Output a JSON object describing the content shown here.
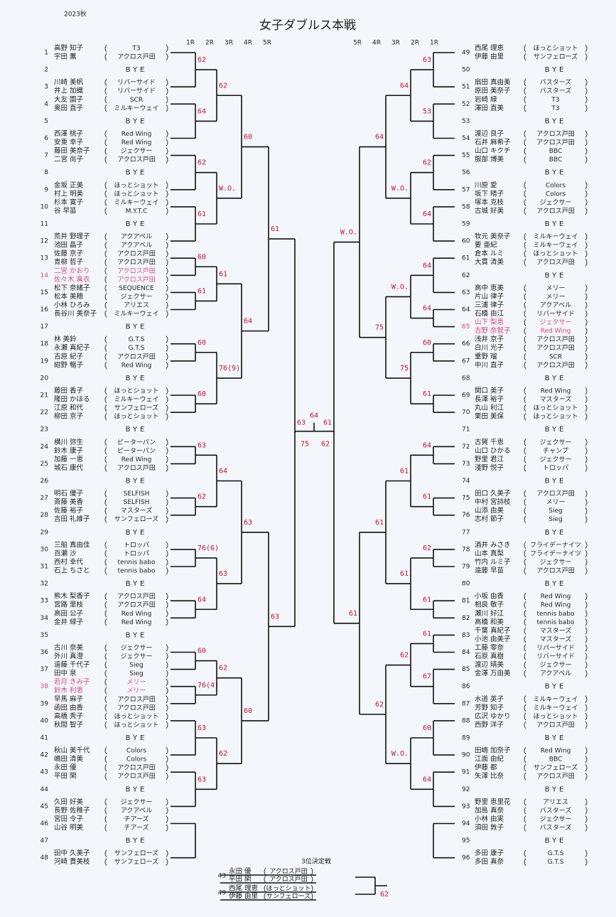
{
  "header": {
    "season": "2023秋",
    "title": "女子ダブルス本戦"
  },
  "rounds_left": [
    "1R",
    "2R",
    "3R",
    "4R",
    "5R"
  ],
  "rounds_right": [
    "5R",
    "4R",
    "3R",
    "2R",
    "1R"
  ],
  "left": {
    "slots": [
      {
        "no": 1,
        "players": [
          {
            "name": "高野 知子",
            "team": "T3"
          },
          {
            "name": "宇田 薫",
            "team": "アクロス戸田"
          }
        ]
      },
      {
        "no": 2,
        "bye": "BYE"
      },
      {
        "no": 3,
        "players": [
          {
            "name": "川崎 美帆",
            "team": "リバーサイド"
          },
          {
            "name": "井上 加織",
            "team": "リバーサイド"
          }
        ]
      },
      {
        "no": 4,
        "players": [
          {
            "name": "大友 園子",
            "team": "SCR"
          },
          {
            "name": "奥田 直子",
            "team": "ミルキーウェイ"
          }
        ]
      },
      {
        "no": 5,
        "bye": "BYE"
      },
      {
        "no": 6,
        "players": [
          {
            "name": "西澤 桃子",
            "team": "Red Wing"
          },
          {
            "name": "安東 幸子",
            "team": "Red Wing"
          }
        ]
      },
      {
        "no": 7,
        "players": [
          {
            "name": "藤田 美奈子",
            "team": "ジェクサー"
          },
          {
            "name": "二宮 尚子",
            "team": "アクロス戸田"
          }
        ]
      },
      {
        "no": 8,
        "bye": "BYE"
      },
      {
        "no": 9,
        "players": [
          {
            "name": "金坂 正美",
            "team": "ほっとショット"
          },
          {
            "name": "村上 明美",
            "team": "ほっとショット"
          }
        ]
      },
      {
        "no": 10,
        "players": [
          {
            "name": "杉本 寛子",
            "team": "ミルキーウェイ"
          },
          {
            "name": "谷 早苗",
            "team": "M.Y.T.C"
          }
        ]
      },
      {
        "no": 11,
        "bye": "BYE"
      },
      {
        "no": 12,
        "players": [
          {
            "name": "荒井 野理子",
            "team": "アクアベル"
          },
          {
            "name": "池田 晶子",
            "team": "アクアベル"
          }
        ]
      },
      {
        "no": 13,
        "players": [
          {
            "name": "佐藤 京子",
            "team": "アクロス戸田"
          },
          {
            "name": "青柳 哲子",
            "team": "アクロス戸田"
          }
        ]
      },
      {
        "no": 14,
        "highlight": true,
        "players": [
          {
            "name": "二宮 かおり",
            "team": "アクロス戸田"
          },
          {
            "name": "佐々木 真衣",
            "team": "アクロス戸田"
          }
        ]
      },
      {
        "no": 15,
        "players": [
          {
            "name": "松下 奈緒子",
            "team": "SEQUENCE"
          },
          {
            "name": "松本 美穂",
            "team": "ジェクサー"
          }
        ]
      },
      {
        "no": 16,
        "players": [
          {
            "name": "小林 ひろみ",
            "team": "アリエス"
          },
          {
            "name": "長谷川 美奈子",
            "team": "ミルキーウェイ"
          }
        ]
      },
      {
        "no": 17,
        "bye": "BYE"
      },
      {
        "no": 18,
        "players": [
          {
            "name": "林 美鈴",
            "team": "G.T.S"
          },
          {
            "name": "永瀬 真紀子",
            "team": "G.T.S"
          }
        ]
      },
      {
        "no": 19,
        "players": [
          {
            "name": "吉原 紀子",
            "team": "アクロス戸田"
          },
          {
            "name": "紺野 暢子",
            "team": "Red Wing"
          }
        ]
      },
      {
        "no": 20,
        "bye": "BYE"
      },
      {
        "no": 21,
        "players": [
          {
            "name": "藤田 香子",
            "team": "ほっとショット"
          },
          {
            "name": "隆田 かほる",
            "team": "ミルキーウェイ"
          }
        ]
      },
      {
        "no": 22,
        "players": [
          {
            "name": "江原 和代",
            "team": "サンフェローズ"
          },
          {
            "name": "柳田 京子",
            "team": "ほっとショット"
          }
        ]
      },
      {
        "no": 23,
        "bye": "BYE"
      },
      {
        "no": 24,
        "players": [
          {
            "name": "横川 弥生",
            "team": "ピーターパン"
          },
          {
            "name": "鈴木 康子",
            "team": "ピーターパン"
          }
        ]
      },
      {
        "no": 25,
        "players": [
          {
            "name": "加藤 一恵",
            "team": "Red Wing"
          },
          {
            "name": "城石 康代",
            "team": "アクロス戸田"
          }
        ]
      },
      {
        "no": 26,
        "bye": "BYE"
      },
      {
        "no": 27,
        "players": [
          {
            "name": "明石 優子",
            "team": "SELFISH"
          },
          {
            "name": "斎藤 美香",
            "team": "SELFISH"
          }
        ]
      },
      {
        "no": 28,
        "players": [
          {
            "name": "佐藤 裕子",
            "team": "マスターズ"
          },
          {
            "name": "吉田 礼維子",
            "team": "サンフェローズ"
          }
        ]
      },
      {
        "no": 29,
        "bye": "BYE"
      },
      {
        "no": 30,
        "players": [
          {
            "name": "三船 真由佳",
            "team": "トロッパ"
          },
          {
            "name": "百瀬 沙",
            "team": "トロッパ"
          }
        ]
      },
      {
        "no": 31,
        "players": [
          {
            "name": "西村 幸代",
            "team": "tennis babo"
          },
          {
            "name": "石上 ちさと",
            "team": "tennis babo"
          }
        ]
      },
      {
        "no": 32,
        "bye": "BYE"
      },
      {
        "no": 33,
        "players": [
          {
            "name": "熊木 梨香子",
            "team": "アクロス戸田"
          },
          {
            "name": "宮路 里枝",
            "team": "アクロス戸田"
          }
        ]
      },
      {
        "no": 34,
        "players": [
          {
            "name": "高田 公子",
            "team": "Red Wing"
          },
          {
            "name": "金井 緑子",
            "team": "Red Wing"
          }
        ]
      },
      {
        "no": 35,
        "bye": "BYE"
      },
      {
        "no": 36,
        "players": [
          {
            "name": "古川 奈美",
            "team": "ジェクサー"
          },
          {
            "name": "外川 真澄",
            "team": "ジェクサー"
          }
        ]
      },
      {
        "no": 37,
        "players": [
          {
            "name": "遠藤 千代子",
            "team": "Sieg"
          },
          {
            "name": "田中 泉",
            "team": "Sieg"
          }
        ]
      },
      {
        "no": 38,
        "highlight": true,
        "players": [
          {
            "name": "若月 きみ子",
            "team": "メリー"
          },
          {
            "name": "鈴木 利恵",
            "team": "メリー"
          }
        ]
      },
      {
        "no": 39,
        "players": [
          {
            "name": "早馬 麻子",
            "team": "アクロス戸田"
          },
          {
            "name": "函田 由香",
            "team": "アクロス戸田"
          }
        ]
      },
      {
        "no": 40,
        "players": [
          {
            "name": "高橋 秀子",
            "team": "ほっとショット"
          },
          {
            "name": "秋間 智子",
            "team": "ほっとショット"
          }
        ]
      },
      {
        "no": 41,
        "bye": "BYE"
      },
      {
        "no": 42,
        "players": [
          {
            "name": "秋山 美千代",
            "team": "Colors"
          },
          {
            "name": "嶋田 清美",
            "team": "Colors"
          }
        ]
      },
      {
        "no": 43,
        "players": [
          {
            "name": "永田 優",
            "team": "アクロス戸田"
          },
          {
            "name": "平田 閑",
            "team": "アクロス戸田"
          }
        ]
      },
      {
        "no": 44,
        "bye": "BYE"
      },
      {
        "no": 45,
        "players": [
          {
            "name": "久田 好美",
            "team": "ジェクサー"
          },
          {
            "name": "長野 佐稚子",
            "team": "アクアベル"
          }
        ]
      },
      {
        "no": 46,
        "players": [
          {
            "name": "宮田 令子",
            "team": "チアーズ"
          },
          {
            "name": "山谷 明美",
            "team": "チアーズ"
          }
        ]
      },
      {
        "no": 47,
        "bye": "BYE"
      },
      {
        "no": 48,
        "players": [
          {
            "name": "田中 久美子",
            "team": "サンフェローズ"
          },
          {
            "name": "河崎 貴美枝",
            "team": "サンフェローズ"
          }
        ]
      }
    ],
    "scores": [
      [
        "62",
        "64",
        "62",
        "61",
        "60",
        "61",
        "60",
        "60",
        "63",
        "62",
        "76(6)",
        "64",
        "60",
        "76(4)",
        "63",
        "63"
      ],
      [
        "62",
        "W.O.",
        "61",
        "76(9)",
        "64",
        "63",
        "62",
        "62"
      ],
      [
        "60",
        "64",
        "63",
        "60"
      ],
      [
        "61",
        "63"
      ],
      [
        "63"
      ]
    ]
  },
  "right": {
    "slots": [
      {
        "no": 49,
        "players": [
          {
            "name": "西尾 理恵",
            "team": "ほっとショット"
          },
          {
            "name": "伊藤 由里",
            "team": "サンフェローズ"
          }
        ]
      },
      {
        "no": 50,
        "bye": "BYE"
      },
      {
        "no": 51,
        "players": [
          {
            "name": "扇田 真由美",
            "team": "バスターズ"
          },
          {
            "name": "原田 美奈子",
            "team": "バスターズ"
          }
        ]
      },
      {
        "no": 52,
        "players": [
          {
            "name": "岩崎 緑",
            "team": "T3"
          },
          {
            "name": "澤田 直美",
            "team": "T3"
          }
        ]
      },
      {
        "no": 53,
        "bye": "BYE"
      },
      {
        "no": 54,
        "players": [
          {
            "name": "渡辺 良子",
            "team": "アクロス戸田"
          },
          {
            "name": "石井 麻希子",
            "team": "アクロス戸田"
          }
        ]
      },
      {
        "no": 55,
        "players": [
          {
            "name": "山口 キクチ",
            "team": "BBC"
          },
          {
            "name": "服部 博美",
            "team": "BBC"
          }
        ]
      },
      {
        "no": 56,
        "bye": "BYE"
      },
      {
        "no": 57,
        "players": [
          {
            "name": "川原 愛",
            "team": "Colors"
          },
          {
            "name": "坂下 晴子",
            "team": "Colors"
          }
        ]
      },
      {
        "no": 58,
        "players": [
          {
            "name": "塚本 克枝",
            "team": "ジェクサー"
          },
          {
            "name": "古城 好美",
            "team": "アクロス戸田"
          }
        ]
      },
      {
        "no": 59,
        "bye": "BYE"
      },
      {
        "no": 60,
        "players": [
          {
            "name": "牧元 美奈子",
            "team": "ミルキーウェイ"
          },
          {
            "name": "要 亜紀",
            "team": "ミルキーウェイ"
          }
        ]
      },
      {
        "no": 61,
        "players": [
          {
            "name": "倉本 ルミ",
            "team": "ほっとショット"
          },
          {
            "name": "大貫 清美",
            "team": "アクロス戸田"
          }
        ]
      },
      {
        "no": 62,
        "bye": "BYE"
      },
      {
        "no": 63,
        "players": [
          {
            "name": "高中 恵美",
            "team": "メリー"
          },
          {
            "name": "片山 律子",
            "team": "メリー"
          }
        ]
      },
      {
        "no": 64,
        "players": [
          {
            "name": "三浦 律子",
            "team": "アクアベル"
          },
          {
            "name": "石橋 由江",
            "team": "リバーサイド"
          }
        ]
      },
      {
        "no": 65,
        "highlight": true,
        "players": [
          {
            "name": "山下 梨恵",
            "team": "ジェクサー"
          },
          {
            "name": "吉野 奈智子",
            "team": "Red Wing"
          }
        ]
      },
      {
        "no": 66,
        "players": [
          {
            "name": "浅井 京子",
            "team": "アクロス戸田"
          },
          {
            "name": "白川 光子",
            "team": "アクロス戸田"
          }
        ]
      },
      {
        "no": 67,
        "players": [
          {
            "name": "重野 瑠",
            "team": "SCR"
          },
          {
            "name": "中川 直子",
            "team": "アクロス戸田"
          }
        ]
      },
      {
        "no": 68,
        "bye": "BYE"
      },
      {
        "no": 69,
        "players": [
          {
            "name": "関口 美子",
            "team": "Red Wing"
          },
          {
            "name": "長澤 裕子",
            "team": "マスターズ"
          }
        ]
      },
      {
        "no": 70,
        "players": [
          {
            "name": "丸山 利江",
            "team": "ほっとショット"
          },
          {
            "name": "栗田 美保",
            "team": "ほっとショット"
          }
        ]
      },
      {
        "no": 71,
        "bye": "BYE"
      },
      {
        "no": 72,
        "players": [
          {
            "name": "古賀 千恵",
            "team": "ジェクサー"
          },
          {
            "name": "山口 ひかる",
            "team": "チャンプ"
          }
        ]
      },
      {
        "no": 73,
        "players": [
          {
            "name": "野里 君江",
            "team": "ジェクサー"
          },
          {
            "name": "淺野 悦子",
            "team": "トロッパ"
          }
        ]
      },
      {
        "no": 74,
        "bye": "BYE"
      },
      {
        "no": 75,
        "players": [
          {
            "name": "田口 久美子",
            "team": "アクロス戸田"
          },
          {
            "name": "中村 宮詩枝",
            "team": "メリー"
          }
        ]
      },
      {
        "no": 76,
        "players": [
          {
            "name": "山添 由美",
            "team": "Sieg"
          },
          {
            "name": "志村 節子",
            "team": "Sieg"
          }
        ]
      },
      {
        "no": 77,
        "bye": "BYE"
      },
      {
        "no": 78,
        "players": [
          {
            "name": "酒井 みさき",
            "team": "フライデーナイツ"
          },
          {
            "name": "山本 真梨",
            "team": "フライデーナイツ"
          }
        ]
      },
      {
        "no": 79,
        "players": [
          {
            "name": "竹内 ルミ子",
            "team": "ジェクサー"
          },
          {
            "name": "遠藤 早苗",
            "team": "アクロス戸田"
          }
        ]
      },
      {
        "no": 80,
        "bye": "BYE"
      },
      {
        "no": 81,
        "players": [
          {
            "name": "小坂 由香",
            "team": "Red Wing"
          },
          {
            "name": "相良 敬子",
            "team": "Red Wing"
          }
        ]
      },
      {
        "no": 82,
        "players": [
          {
            "name": "瀬川 好江",
            "team": "tennis babo"
          },
          {
            "name": "高橋 和美",
            "team": "tennis babo"
          }
        ]
      },
      {
        "no": 83,
        "players": [
          {
            "name": "千葉 真紀子",
            "team": "マスターズ"
          },
          {
            "name": "小池 由美子",
            "team": "マスターズ"
          }
        ]
      },
      {
        "no": 84,
        "players": [
          {
            "name": "工藤 零奈",
            "team": "リバーサイド"
          },
          {
            "name": "石原 真樹",
            "team": "リバーサイド"
          }
        ]
      },
      {
        "no": 85,
        "players": [
          {
            "name": "渡辺 晴美",
            "team": "ジェクサー"
          },
          {
            "name": "金澤 万由美",
            "team": "アクアベル"
          }
        ]
      },
      {
        "no": 86,
        "bye": "BYE"
      },
      {
        "no": 87,
        "players": [
          {
            "name": "水道 英子",
            "team": "ミルキーウェイ"
          },
          {
            "name": "芳野 知子",
            "team": "ミルキーウェイ"
          }
        ]
      },
      {
        "no": 88,
        "players": [
          {
            "name": "広沢 ゆかり",
            "team": "ほっとショット"
          },
          {
            "name": "西野 洋子",
            "team": "アクロス戸田"
          }
        ]
      },
      {
        "no": 89,
        "bye": "BYE"
      },
      {
        "no": 90,
        "players": [
          {
            "name": "田嶋 加奈子",
            "team": "Red Wing"
          },
          {
            "name": "江面 由紀",
            "team": "BBC"
          }
        ]
      },
      {
        "no": 91,
        "players": [
          {
            "name": "伊藤 都",
            "team": "サンフェローズ"
          },
          {
            "name": "矢澤 比奈",
            "team": "アクロス戸田"
          }
        ]
      },
      {
        "no": 92,
        "bye": "BYE"
      },
      {
        "no": 93,
        "players": [
          {
            "name": "野里 恵里花",
            "team": "アリエス"
          },
          {
            "name": "加島 真奈",
            "team": "バスターズ"
          }
        ]
      },
      {
        "no": 94,
        "players": [
          {
            "name": "小林 由実",
            "team": "ジェクサー"
          },
          {
            "name": "須田 敦子",
            "team": "バスターズ"
          }
        ]
      },
      {
        "no": 95,
        "bye": "BYE"
      },
      {
        "no": 96,
        "players": [
          {
            "name": "多田 康子",
            "team": "G.T.S"
          },
          {
            "name": "多田 真奈",
            "team": "G.T.S"
          }
        ]
      }
    ],
    "scores": [
      [
        "63",
        "53",
        "62",
        "64",
        "64",
        "64",
        "60",
        "61",
        "64",
        "61",
        "62",
        "61",
        "61",
        "67",
        "60",
        "64"
      ],
      [
        "64",
        "W.O.",
        "W.O.",
        "75",
        "61",
        "61",
        "62",
        "W.O."
      ],
      [
        "64",
        "75",
        "61",
        "62"
      ],
      [
        "W.O.",
        "61"
      ],
      [
        "61"
      ]
    ]
  },
  "final": {
    "scores": [
      "75",
      "62",
      "64"
    ]
  },
  "third_place": {
    "label": "3位決定戦",
    "entries": [
      {
        "no": 43,
        "players": [
          {
            "name": "永田 優",
            "team": "アクロス戸田"
          },
          {
            "name": "平田 閑",
            "team": "アクロス戸田"
          }
        ]
      },
      {
        "no": 49,
        "players": [
          {
            "name": "西尾 理恵",
            "team": "ほっとショット"
          },
          {
            "name": "伊藤 由里",
            "team": "サンフェローズ"
          }
        ]
      }
    ],
    "score": "62"
  }
}
